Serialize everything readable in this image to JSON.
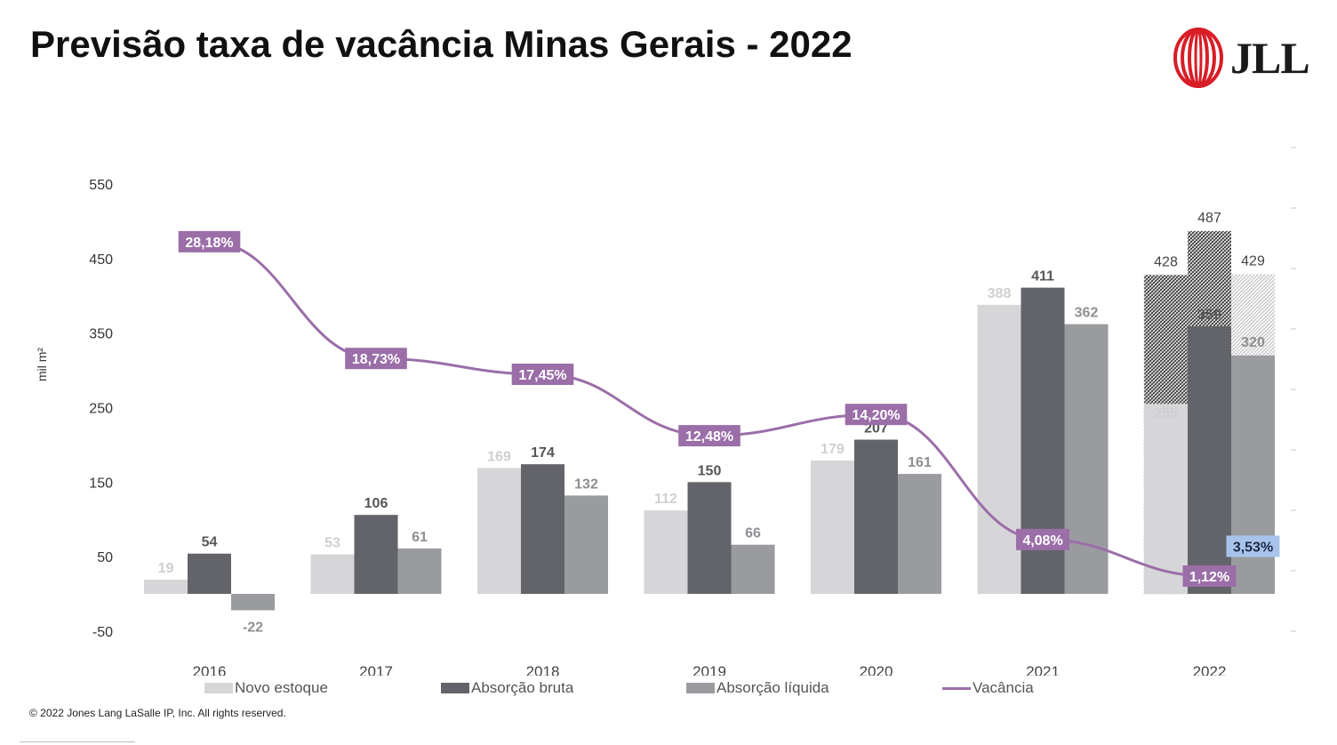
{
  "title": "Previsão taxa de vacância Minas Gerais - 2022",
  "logo": {
    "text": "JLL",
    "icon": "jll-logo-icon"
  },
  "footer": {
    "copyright": "© 2022 Jones Lang LaSalle IP, Inc. All rights reserved."
  },
  "colors": {
    "novo_estoque": "#d6d6d8",
    "absorcao_bruta": "#636469",
    "absorcao_liquida": "#9a9b9f",
    "vacancia": "#9b6ea8",
    "vacancia_forecast_label": "#a8c4ec",
    "novo_estoque_label": "#cfcfd1",
    "bruta_label": "#555555",
    "liquida_label": "#8e8f93"
  },
  "chart_data": {
    "type": "bar",
    "title": "Previsão taxa de vacância Minas Gerais - 2022",
    "ylabel": "mil m²",
    "ylim": [
      -50,
      550
    ],
    "yticks": [
      "550",
      "450",
      "350",
      "250",
      "150",
      "50",
      "-50"
    ],
    "ytick_values": [
      550,
      450,
      350,
      250,
      150,
      50,
      -50
    ],
    "categories": [
      "2016",
      "2017",
      "2018",
      "2019",
      "2020",
      "2021",
      "2022"
    ],
    "legend_position": "bottom",
    "grid": false,
    "series": [
      {
        "name": "Novo estoque",
        "values": [
          19,
          53,
          169,
          112,
          179,
          388,
          255
        ],
        "labels": [
          "19",
          "53",
          "169",
          "112",
          "179",
          "388",
          "255"
        ],
        "forecast_top": 428,
        "forecast_label": "428"
      },
      {
        "name": "Absorção bruta",
        "values": [
          54,
          106,
          174,
          150,
          207,
          411,
          359
        ],
        "labels": [
          "54",
          "106",
          "174",
          "150",
          "207",
          "411",
          "359"
        ],
        "forecast_top": 487,
        "forecast_label": "487"
      },
      {
        "name": "Absorção líquida",
        "values": [
          -22,
          61,
          132,
          66,
          161,
          362,
          320
        ],
        "labels": [
          "-22",
          "61",
          "132",
          "66",
          "161",
          "362",
          "320"
        ],
        "forecast_top": 429,
        "forecast_label": "429"
      }
    ],
    "line_series": {
      "name": "Vacância",
      "values": [
        28.18,
        18.73,
        17.45,
        12.48,
        14.2,
        4.08,
        1.12
      ],
      "labels": [
        "28,18%",
        "18,73%",
        "17,45%",
        "12,48%",
        "14,20%",
        "4,08%",
        "1,12%"
      ],
      "extra_label": "3,53%",
      "extra_value": 3.53
    }
  }
}
